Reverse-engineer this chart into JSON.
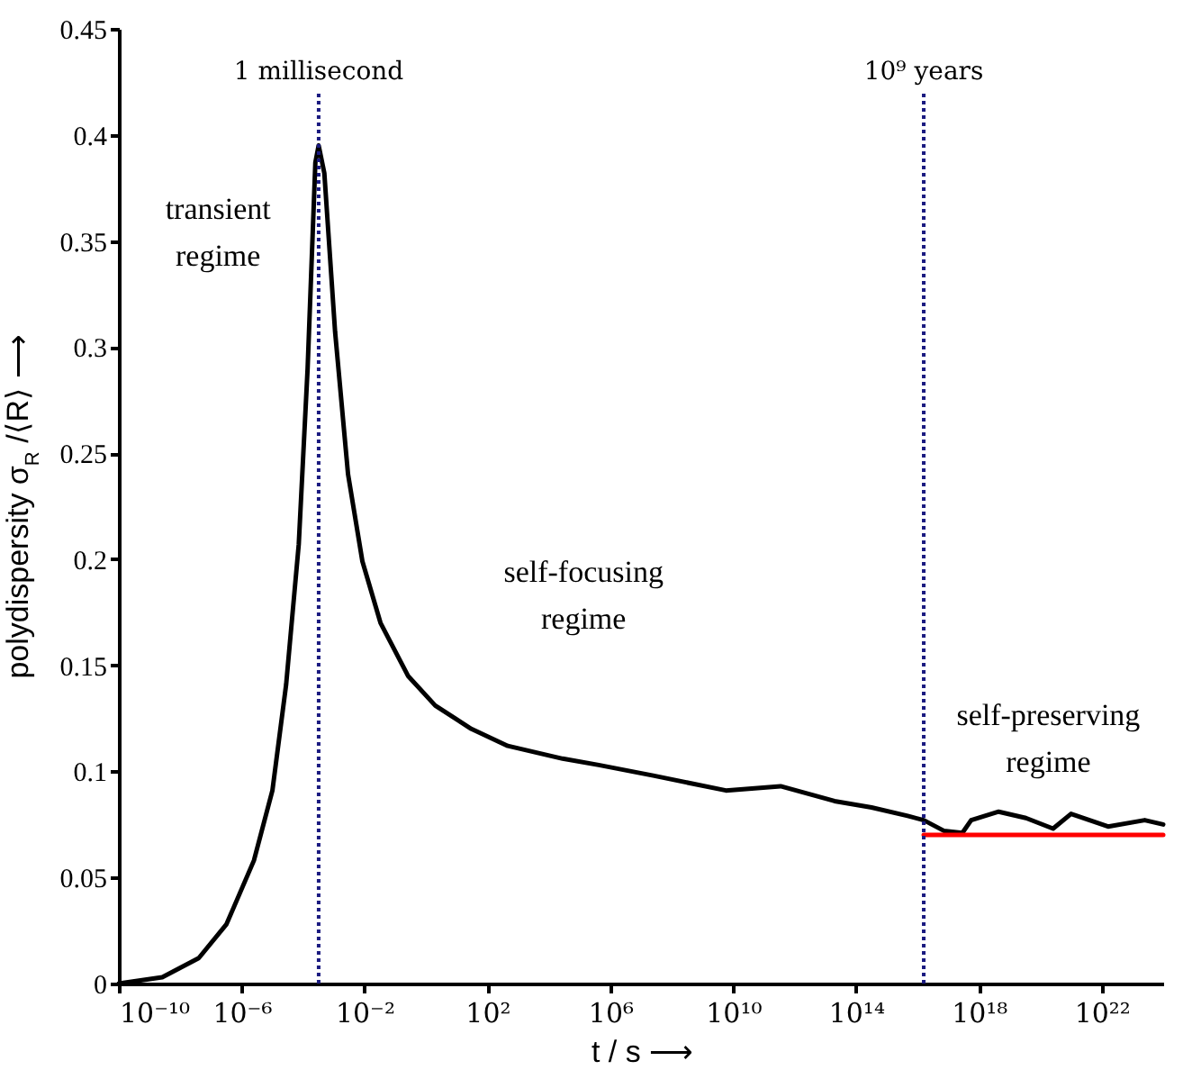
{
  "chart_data": {
    "type": "line",
    "xlabel": "t / s  ⟶",
    "ylabel": "polydispersity σ$_{R}$ /⟨R⟩  ⟶",
    "log": "x",
    "marker": "none",
    "line_style": "solid",
    "xlim": [
      1e-10,
      1e+24
    ],
    "ylim": [
      0,
      0.45
    ],
    "xticks": [
      {
        "value": 1e-10,
        "label": "10⁻¹⁰"
      },
      {
        "value": 1e-06,
        "label": "10⁻⁶"
      },
      {
        "value": 0.01,
        "label": "10⁻²"
      },
      {
        "value": 100,
        "label": "10²"
      },
      {
        "value": 1000000.0,
        "label": "10⁶"
      },
      {
        "value": 10000000000.0,
        "label": "10¹⁰"
      },
      {
        "value": 100000000000000.0,
        "label": "10¹⁴"
      },
      {
        "value": 1e+18,
        "label": "10¹⁸"
      },
      {
        "value": 1e+22,
        "label": "10²²"
      }
    ],
    "yticks": [
      0,
      0.05,
      0.1,
      0.15,
      0.2,
      0.25,
      0.3,
      0.35,
      0.4,
      0.45
    ],
    "series": [
      {
        "color": "#000000",
        "x": [
          1e-10,
          2.6e-09,
          4e-08,
          3.2e-07,
          2.5e-06,
          1e-05,
          2.8e-05,
          7.2e-05,
          0.00014,
          0.00025,
          0.00032,
          0.00049,
          0.0011,
          0.0029,
          0.0085,
          0.033,
          0.26,
          2,
          30,
          460,
          28000.0,
          420000.0,
          25000000.0,
          5800000000.0,
          350000000000.0,
          20000000000000.0,
          320000000000000.0,
          4800000000000000.0,
          1.6e+16,
          7.2e+16,
          2.9e+17,
          5.6e+17,
          4.4e+18,
          3.4e+19,
          2.6e+20,
          1e+21,
          1.6e+22,
          2.5e+23,
          1e+24
        ],
        "values": [
          0,
          0.003,
          0.012,
          0.028,
          0.058,
          0.091,
          0.141,
          0.207,
          0.29,
          0.387,
          0.395,
          0.382,
          0.307,
          0.24,
          0.199,
          0.17,
          0.145,
          0.131,
          0.12,
          0.112,
          0.106,
          0.103,
          0.098,
          0.091,
          0.093,
          0.086,
          0.083,
          0.079,
          0.077,
          0.072,
          0.071,
          0.077,
          0.081,
          0.078,
          0.073,
          0.08,
          0.074,
          0.077,
          0.075
        ]
      },
      {
        "color": "#ff0000",
        "x": [
          1.6e+16,
          1e+24
        ],
        "values": [
          0.07,
          0.07
        ]
      }
    ],
    "ref_lines": [
      {
        "axis": "x",
        "value": 0.00032,
        "label": "1 millisecond",
        "color": "#1a1a80",
        "line_style": "dotted"
      },
      {
        "axis": "x",
        "value": 1.6e+16,
        "label": "10⁹ years",
        "color": "#1a1a80",
        "line_style": "dotted"
      }
    ],
    "annotations": [
      "transient\nregime",
      "self-focusing\nregime",
      "self-preserving\nregime"
    ]
  }
}
